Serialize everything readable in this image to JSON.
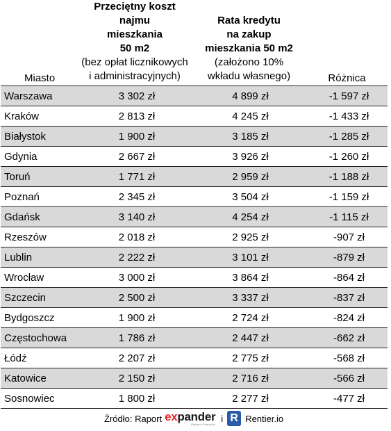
{
  "header": {
    "city": "Miasto",
    "rent_title_1": "Przeciętny koszt najmu",
    "rent_title_2": "mieszkania",
    "rent_title_3": "50 m2",
    "rent_sub_1": "(bez opłat licznikowych",
    "rent_sub_2": "i administracyjnych)",
    "loan_title_1": "Rata kredytu",
    "loan_title_2": "na zakup",
    "loan_title_3": "mieszkania 50 m2",
    "loan_sub_1": "(założono 10%",
    "loan_sub_2": "wkładu własnego)",
    "diff": "Różnica"
  },
  "rows": [
    {
      "city": "Warszawa",
      "rent": "3 302 zł",
      "loan": "4 899 zł",
      "diff": "-1 597 zł"
    },
    {
      "city": "Kraków",
      "rent": "2 813 zł",
      "loan": "4 245 zł",
      "diff": "-1 433 zł"
    },
    {
      "city": "Białystok",
      "rent": "1 900 zł",
      "loan": "3 185 zł",
      "diff": "-1 285 zł"
    },
    {
      "city": "Gdynia",
      "rent": "2 667 zł",
      "loan": "3 926 zł",
      "diff": "-1 260 zł"
    },
    {
      "city": "Toruń",
      "rent": "1 771 zł",
      "loan": "2 959 zł",
      "diff": "-1 188 zł"
    },
    {
      "city": "Poznań",
      "rent": "2 345 zł",
      "loan": "3 504 zł",
      "diff": "-1 159 zł"
    },
    {
      "city": "Gdańsk",
      "rent": "3 140 zł",
      "loan": "4 254 zł",
      "diff": "-1 115 zł"
    },
    {
      "city": "Rzeszów",
      "rent": "2 018 zł",
      "loan": "2 925 zł",
      "diff": "-907 zł"
    },
    {
      "city": "Lublin",
      "rent": "2 222 zł",
      "loan": "3 101 zł",
      "diff": "-879 zł"
    },
    {
      "city": "Wrocław",
      "rent": "3 000 zł",
      "loan": "3 864 zł",
      "diff": "-864 zł"
    },
    {
      "city": "Szczecin",
      "rent": "2 500 zł",
      "loan": "3 337 zł",
      "diff": "-837 zł"
    },
    {
      "city": "Bydgoszcz",
      "rent": "1 900 zł",
      "loan": "2 724 zł",
      "diff": "-824 zł"
    },
    {
      "city": "Częstochowa",
      "rent": "1 786 zł",
      "loan": "2 447 zł",
      "diff": "-662 zł"
    },
    {
      "city": "Łódź",
      "rent": "2 207 zł",
      "loan": "2 775 zł",
      "diff": "-568 zł"
    },
    {
      "city": "Katowice",
      "rent": "2 150 zł",
      "loan": "2 716 zł",
      "diff": "-566 zł"
    },
    {
      "city": "Sosnowiec",
      "rent": "1 800 zł",
      "loan": "2 277 zł",
      "diff": "-477 zł"
    }
  ],
  "source": {
    "prefix": "Źródło: Raport",
    "expander_ex": "ex",
    "expander_rest": "pander",
    "expander_tagline": "Eksperci Finansowi",
    "conjunction": "i",
    "rentier_icon_letter": "R",
    "rentier_name": "Rentier.io"
  },
  "colors": {
    "row_shade": "#d9d9d9",
    "expander_red": "#e8262c",
    "rentier_blue": "#2a5ba8"
  }
}
